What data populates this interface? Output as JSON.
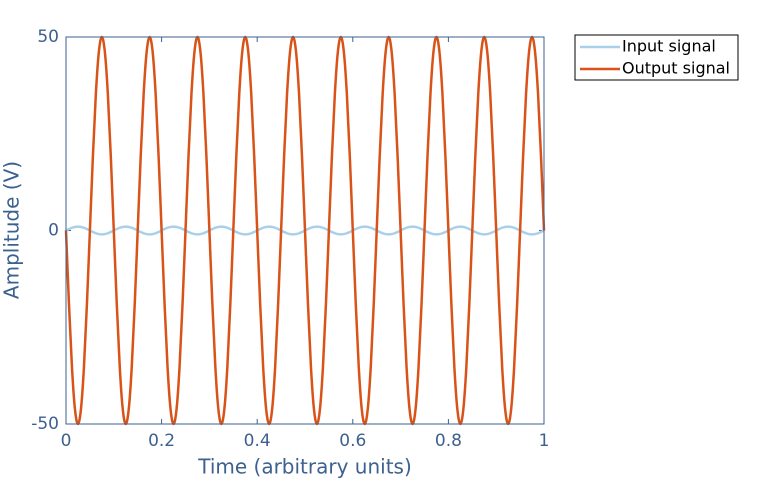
{
  "chart_data": {
    "type": "line",
    "xlabel": "Time (arbitrary units)",
    "ylabel": "Amplitude (V)",
    "x": [
      0,
      0.00625,
      0.0125,
      0.01875,
      0.025,
      0.03125,
      0.0375,
      0.04375,
      0.05,
      0.05625,
      0.0625,
      0.06875,
      0.075,
      0.08125,
      0.0875,
      0.09375,
      0.1,
      0.10625,
      0.1125,
      0.11875,
      0.125,
      0.13125,
      0.1375,
      0.14375,
      0.15,
      0.15625,
      0.1625,
      0.16875,
      0.175,
      0.18125,
      0.1875,
      0.19375,
      0.2,
      0.20625,
      0.2125,
      0.21875,
      0.225,
      0.23125,
      0.2375,
      0.24375,
      0.25,
      0.25625,
      0.2625,
      0.26875,
      0.275,
      0.28125,
      0.2875,
      0.29375,
      0.3,
      0.30625,
      0.3125,
      0.31875,
      0.325,
      0.33125,
      0.3375,
      0.34375,
      0.35,
      0.35625,
      0.3625,
      0.36875,
      0.375,
      0.38125,
      0.3875,
      0.39375,
      0.4,
      0.40625,
      0.4125,
      0.41875,
      0.425,
      0.43125,
      0.4375,
      0.44375,
      0.45,
      0.45625,
      0.4625,
      0.46875,
      0.475,
      0.48125,
      0.4875,
      0.49375,
      0.5,
      0.50625,
      0.5125,
      0.51875,
      0.525,
      0.53125,
      0.5375,
      0.54375,
      0.55,
      0.55625,
      0.5625,
      0.56875,
      0.575,
      0.58125,
      0.5875,
      0.59375,
      0.6,
      0.60625,
      0.6125,
      0.61875,
      0.625,
      0.63125,
      0.6375,
      0.64375,
      0.65,
      0.65625,
      0.6625,
      0.66875,
      0.675,
      0.68125,
      0.6875,
      0.69375,
      0.7,
      0.70625,
      0.7125,
      0.71875,
      0.725,
      0.73125,
      0.7375,
      0.74375,
      0.75,
      0.75625,
      0.7625,
      0.76875,
      0.775,
      0.78125,
      0.7875,
      0.79375,
      0.8,
      0.80625,
      0.8125,
      0.81875,
      0.825,
      0.83125,
      0.8375,
      0.84375,
      0.85,
      0.85625,
      0.8625,
      0.86875,
      0.875,
      0.88125,
      0.8875,
      0.89375,
      0.9,
      0.90625,
      0.9125,
      0.91875,
      0.925,
      0.93125,
      0.9375,
      0.94375,
      0.95,
      0.95625,
      0.9625,
      0.96875,
      0.975,
      0.98125,
      0.9875,
      0.99375,
      1
    ],
    "series": [
      {
        "name": "Input signal",
        "color": "#a9d0ea",
        "values": [
          0,
          0.38,
          0.71,
          0.92,
          1,
          0.92,
          0.71,
          0.38,
          0,
          -0.38,
          -0.71,
          -0.92,
          -1,
          -0.92,
          -0.71,
          -0.38,
          0,
          0.38,
          0.71,
          0.92,
          1,
          0.92,
          0.71,
          0.38,
          0,
          -0.38,
          -0.71,
          -0.92,
          -1,
          -0.92,
          -0.71,
          -0.38,
          0,
          0.38,
          0.71,
          0.92,
          1,
          0.92,
          0.71,
          0.38,
          0,
          -0.38,
          -0.71,
          -0.92,
          -1,
          -0.92,
          -0.71,
          -0.38,
          0,
          0.38,
          0.71,
          0.92,
          1,
          0.92,
          0.71,
          0.38,
          0,
          -0.38,
          -0.71,
          -0.92,
          -1,
          -0.92,
          -0.71,
          -0.38,
          0,
          0.38,
          0.71,
          0.92,
          1,
          0.92,
          0.71,
          0.38,
          0,
          -0.38,
          -0.71,
          -0.92,
          -1,
          -0.92,
          -0.71,
          -0.38,
          0,
          0.38,
          0.71,
          0.92,
          1,
          0.92,
          0.71,
          0.38,
          0,
          -0.38,
          -0.71,
          -0.92,
          -1,
          -0.92,
          -0.71,
          -0.38,
          0,
          0.38,
          0.71,
          0.92,
          1,
          0.92,
          0.71,
          0.38,
          0,
          -0.38,
          -0.71,
          -0.92,
          -1,
          -0.92,
          -0.71,
          -0.38,
          0,
          0.38,
          0.71,
          0.92,
          1,
          0.92,
          0.71,
          0.38,
          0,
          -0.38,
          -0.71,
          -0.92,
          -1,
          -0.92,
          -0.71,
          -0.38,
          0,
          0.38,
          0.71,
          0.92,
          1,
          0.92,
          0.71,
          0.38,
          0,
          -0.38,
          -0.71,
          -0.92,
          -1,
          -0.92,
          -0.71,
          -0.38,
          0,
          0.38,
          0.71,
          0.92,
          1,
          0.92,
          0.71,
          0.38,
          0,
          -0.38,
          -0.71,
          -0.92,
          -1,
          -0.92,
          -0.71,
          -0.38,
          0
        ]
      },
      {
        "name": "Output signal",
        "color": "#d95319",
        "values": [
          0,
          -19.1,
          -35.4,
          -46.2,
          -50,
          -46.2,
          -35.4,
          -19.1,
          0,
          19.1,
          35.4,
          46.2,
          50,
          46.2,
          35.4,
          19.1,
          0,
          -19.1,
          -35.4,
          -46.2,
          -50,
          -46.2,
          -35.4,
          -19.1,
          0,
          19.1,
          35.4,
          46.2,
          50,
          46.2,
          35.4,
          19.1,
          0,
          -19.1,
          -35.4,
          -46.2,
          -50,
          -46.2,
          -35.4,
          -19.1,
          0,
          19.1,
          35.4,
          46.2,
          50,
          46.2,
          35.4,
          19.1,
          0,
          -19.1,
          -35.4,
          -46.2,
          -50,
          -46.2,
          -35.4,
          -19.1,
          0,
          19.1,
          35.4,
          46.2,
          50,
          46.2,
          35.4,
          19.1,
          0,
          -19.1,
          -35.4,
          -46.2,
          -50,
          -46.2,
          -35.4,
          -19.1,
          0,
          19.1,
          35.4,
          46.2,
          50,
          46.2,
          35.4,
          19.1,
          0,
          -19.1,
          -35.4,
          -46.2,
          -50,
          -46.2,
          -35.4,
          -19.1,
          0,
          19.1,
          35.4,
          46.2,
          50,
          46.2,
          35.4,
          19.1,
          0,
          -19.1,
          -35.4,
          -46.2,
          -50,
          -46.2,
          -35.4,
          -19.1,
          0,
          19.1,
          35.4,
          46.2,
          50,
          46.2,
          35.4,
          19.1,
          0,
          -19.1,
          -35.4,
          -46.2,
          -50,
          -46.2,
          -35.4,
          -19.1,
          0,
          19.1,
          35.4,
          46.2,
          50,
          46.2,
          35.4,
          19.1,
          0,
          -19.1,
          -35.4,
          -46.2,
          -50,
          -46.2,
          -35.4,
          -19.1,
          0,
          19.1,
          35.4,
          46.2,
          50,
          46.2,
          35.4,
          19.1,
          0,
          -19.1,
          -35.4,
          -46.2,
          -50,
          -46.2,
          -35.4,
          -19.1,
          0,
          19.1,
          35.4,
          46.2,
          50,
          46.2,
          35.4,
          19.1,
          0
        ]
      }
    ],
    "xlim": [
      0,
      1
    ],
    "xticks": [
      0,
      0.2,
      0.4,
      0.6,
      0.8,
      1
    ],
    "ylim": [
      -50,
      50
    ],
    "yticks": [
      -50,
      0,
      50
    ],
    "grid": false,
    "legend": "outside-upper-right"
  }
}
